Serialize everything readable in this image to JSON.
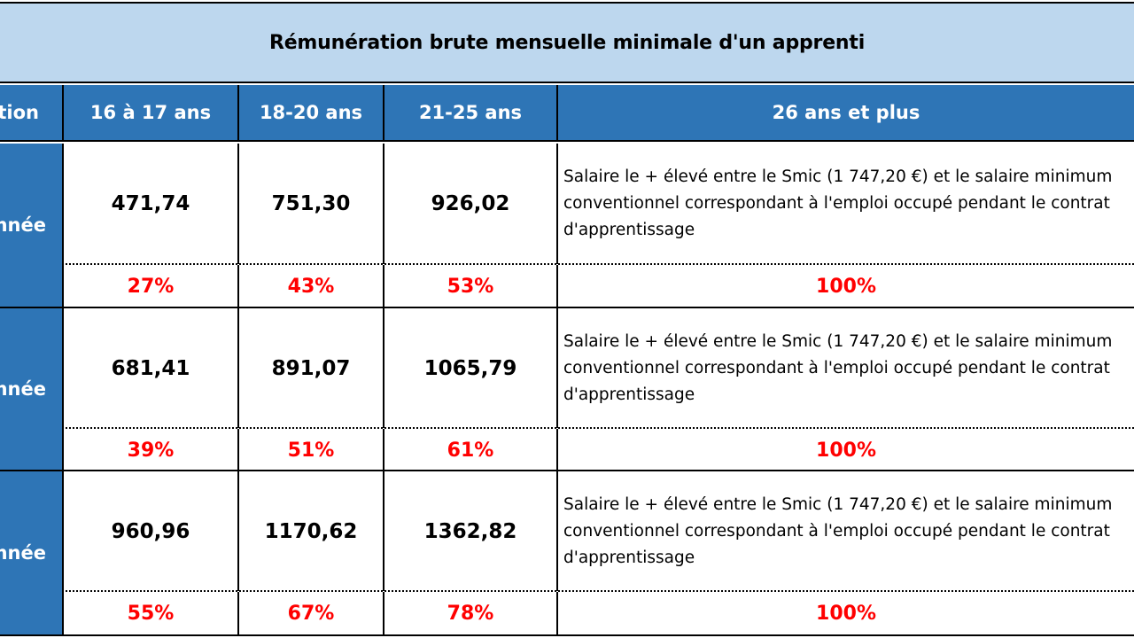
{
  "title": "Rémunération brute mensuelle minimale d'un apprenti",
  "headers": {
    "first": "tion",
    "col1": "16 à 17 ans",
    "col2": "18-20 ans",
    "col3": "21-25 ans",
    "col4": "26 ans et plus"
  },
  "rows": [
    {
      "label": "nnée",
      "values": [
        "471,74",
        "751,30",
        "926,02"
      ],
      "description": "Salaire le + élevé entre le Smic (1 747,20 €) et le salaire minimum conventionnel correspondant à l'emploi occupé pendant le contrat d'apprentissage",
      "percents": [
        "27%",
        "43%",
        "53%",
        "100%"
      ]
    },
    {
      "label": "nnée",
      "values": [
        "681,41",
        "891,07",
        "1065,79"
      ],
      "description": "Salaire le + élevé entre le Smic (1 747,20 €) et le salaire minimum conventionnel correspondant à l'emploi occupé pendant le contrat d'apprentissage",
      "percents": [
        "39%",
        "51%",
        "61%",
        "100%"
      ]
    },
    {
      "label": "nnée",
      "values": [
        "960,96",
        "1170,62",
        "1362,82"
      ],
      "description": "Salaire le + élevé entre le Smic (1 747,20 €) et le salaire minimum conventionnel correspondant à l'emploi occupé pendant le contrat d'apprentissage",
      "percents": [
        "55%",
        "67%",
        "78%",
        "100%"
      ]
    }
  ],
  "colors": {
    "title_band": "#bdd7ee",
    "header_blue": "#2e75b6",
    "percent_red": "#ff0000"
  }
}
